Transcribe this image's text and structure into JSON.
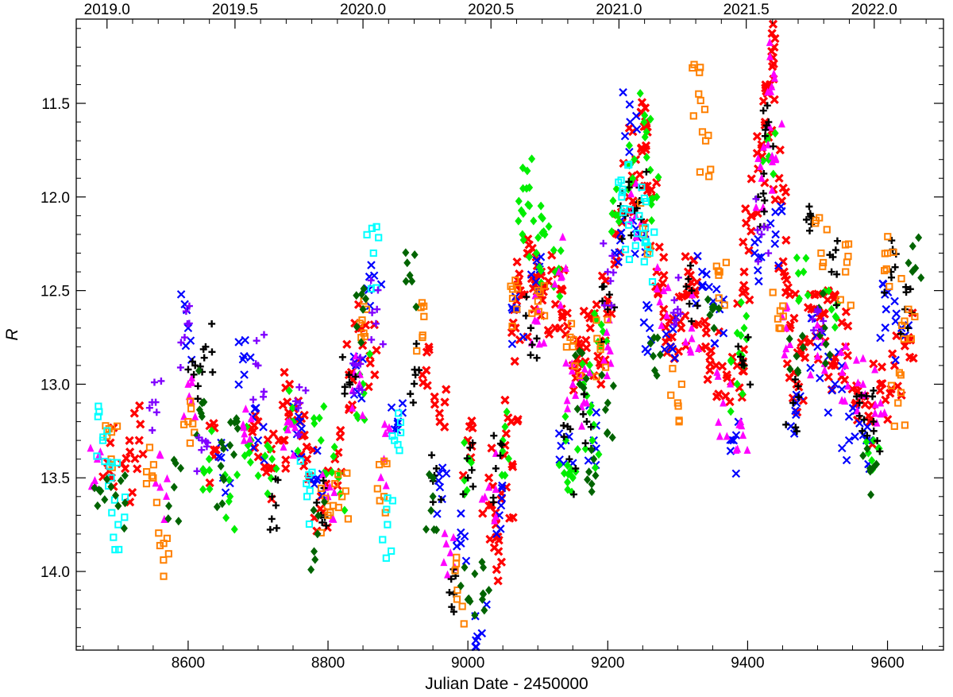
{
  "chart_data": {
    "type": "scatter",
    "title": "",
    "xlabel": "Julian Date - 2450000",
    "ylabel": "R",
    "xlim": [
      8440,
      9680
    ],
    "ylim": [
      14.42,
      11.05
    ],
    "y_inverted": true,
    "grid": false,
    "x_ticks": [
      {
        "value": 8600,
        "label": "8600"
      },
      {
        "value": 8800,
        "label": "8800"
      },
      {
        "value": 9000,
        "label": "9000"
      },
      {
        "value": 9200,
        "label": "9200"
      },
      {
        "value": 9400,
        "label": "9400"
      },
      {
        "value": 9600,
        "label": "9600"
      }
    ],
    "top_ticks": [
      {
        "value": 8484,
        "label": "2019.0"
      },
      {
        "value": 8667,
        "label": "2019.5"
      },
      {
        "value": 8850,
        "label": "2020.0"
      },
      {
        "value": 9033,
        "label": "2020.5"
      },
      {
        "value": 9216,
        "label": "2021.0"
      },
      {
        "value": 9398,
        "label": "2021.5"
      },
      {
        "value": 9581,
        "label": "2022.0"
      }
    ],
    "y_ticks": [
      {
        "value": 11.5,
        "label": "11.5"
      },
      {
        "value": 12.0,
        "label": "12.0"
      },
      {
        "value": 12.5,
        "label": "12.5"
      },
      {
        "value": 13.0,
        "label": "13.0"
      },
      {
        "value": 13.5,
        "label": "13.5"
      },
      {
        "value": 14.0,
        "label": "14.0"
      }
    ],
    "series_colors": [
      "#ff0000",
      "#0000ff",
      "#00ee00",
      "#ff00ff",
      "#000000",
      "#ff8000",
      "#00ffff",
      "#006400",
      "#8000ff"
    ],
    "series": [
      {
        "color": "#ff0000",
        "marker": "x-bold",
        "points": [
          [
            8485,
            13.42
          ],
          [
            8510,
            13.45
          ],
          [
            8530,
            13.3
          ],
          [
            8640,
            13.35
          ],
          [
            8700,
            13.2
          ],
          [
            8715,
            13.45
          ],
          [
            8730,
            13.3
          ],
          [
            8745,
            13.0
          ],
          [
            8760,
            13.2
          ],
          [
            8770,
            13.4
          ],
          [
            8790,
            13.6
          ],
          [
            8810,
            13.4
          ],
          [
            8830,
            12.95
          ],
          [
            8845,
            12.7
          ],
          [
            8860,
            12.85
          ],
          [
            8935,
            12.95
          ],
          [
            8960,
            13.2
          ],
          [
            9000,
            13.3
          ],
          [
            9030,
            13.5
          ],
          [
            9040,
            13.75
          ],
          [
            9048,
            13.95
          ],
          [
            9055,
            13.55
          ],
          [
            9062,
            13.2
          ],
          [
            9068,
            12.7
          ],
          [
            9075,
            12.5
          ],
          [
            9085,
            12.3
          ],
          [
            9095,
            12.6
          ],
          [
            9105,
            12.4
          ],
          [
            9115,
            12.45
          ],
          [
            9125,
            12.7
          ],
          [
            9135,
            12.5
          ],
          [
            9150,
            12.9
          ],
          [
            9160,
            12.8
          ],
          [
            9175,
            12.7
          ],
          [
            9190,
            12.9
          ],
          [
            9200,
            12.55
          ],
          [
            9215,
            12.2
          ],
          [
            9230,
            12.0
          ],
          [
            9240,
            11.8
          ],
          [
            9248,
            11.55
          ],
          [
            9255,
            11.6
          ],
          [
            9262,
            12.0
          ],
          [
            9270,
            12.4
          ],
          [
            9280,
            12.6
          ],
          [
            9290,
            12.8
          ],
          [
            9305,
            12.7
          ],
          [
            9315,
            12.4
          ],
          [
            9325,
            12.5
          ],
          [
            9340,
            12.8
          ],
          [
            9355,
            12.9
          ],
          [
            9370,
            12.95
          ],
          [
            9385,
            12.9
          ],
          [
            9395,
            12.4
          ],
          [
            9405,
            12.1
          ],
          [
            9415,
            11.85
          ],
          [
            9425,
            11.6
          ],
          [
            9432,
            11.4
          ],
          [
            9438,
            11.2
          ],
          [
            9445,
            11.9
          ],
          [
            9452,
            12.4
          ],
          [
            9460,
            12.7
          ],
          [
            9470,
            13.0
          ],
          [
            9480,
            12.8
          ],
          [
            9495,
            12.6
          ],
          [
            9505,
            12.7
          ],
          [
            9515,
            12.5
          ],
          [
            9525,
            12.9
          ],
          [
            9540,
            12.8
          ],
          [
            9555,
            13.1
          ],
          [
            9575,
            13.2
          ],
          [
            9590,
            13.0
          ],
          [
            9610,
            12.9
          ],
          [
            9630,
            12.75
          ]
        ]
      },
      {
        "color": "#0000ff",
        "marker": "x",
        "points": [
          [
            8600,
            12.7
          ],
          [
            8650,
            13.5
          ],
          [
            8680,
            12.85
          ],
          [
            8700,
            13.3
          ],
          [
            8760,
            13.2
          ],
          [
            8785,
            13.5
          ],
          [
            8840,
            12.9
          ],
          [
            8866,
            12.42
          ],
          [
            8900,
            13.2
          ],
          [
            8960,
            13.55
          ],
          [
            8990,
            13.85
          ],
          [
            9020,
            14.33
          ],
          [
            9045,
            13.7
          ],
          [
            9070,
            12.6
          ],
          [
            9100,
            12.5
          ],
          [
            9140,
            13.3
          ],
          [
            9180,
            13.3
          ],
          [
            9210,
            12.3
          ],
          [
            9232,
            11.6
          ],
          [
            9245,
            12.2
          ],
          [
            9260,
            12.7
          ],
          [
            9290,
            12.8
          ],
          [
            9335,
            12.4
          ],
          [
            9360,
            12.6
          ],
          [
            9380,
            13.3
          ],
          [
            9410,
            12.3
          ],
          [
            9440,
            12.2
          ],
          [
            9470,
            13.1
          ],
          [
            9500,
            12.8
          ],
          [
            9525,
            13.0
          ],
          [
            9545,
            13.3
          ],
          [
            9570,
            13.3
          ],
          [
            9598,
            12.6
          ],
          [
            9620,
            12.7
          ]
        ]
      },
      {
        "color": "#00ee00",
        "marker": "diamond",
        "points": [
          [
            8630,
            13.4
          ],
          [
            8660,
            13.6
          ],
          [
            8690,
            13.3
          ],
          [
            8720,
            13.4
          ],
          [
            8750,
            13.2
          ],
          [
            8790,
            13.3
          ],
          [
            8815,
            13.5
          ],
          [
            8850,
            13.0
          ],
          [
            9000,
            13.4
          ],
          [
            9050,
            13.3
          ],
          [
            9078,
            12.2
          ],
          [
            9088,
            11.95
          ],
          [
            9098,
            12.3
          ],
          [
            9110,
            12.2
          ],
          [
            9125,
            12.4
          ],
          [
            9140,
            13.3
          ],
          [
            9150,
            13.5
          ],
          [
            9165,
            13.0
          ],
          [
            9178,
            13.3
          ],
          [
            9190,
            12.8
          ],
          [
            9215,
            12.1
          ],
          [
            9238,
            11.8
          ],
          [
            9252,
            11.6
          ],
          [
            9270,
            12.0
          ],
          [
            9385,
            13.0
          ],
          [
            9395,
            12.7
          ],
          [
            9430,
            11.8
          ],
          [
            9480,
            12.4
          ],
          [
            9520,
            12.6
          ],
          [
            9580,
            13.3
          ]
        ]
      },
      {
        "color": "#ff00ff",
        "marker": "triangle-up",
        "points": [
          [
            8470,
            13.4
          ],
          [
            8560,
            13.55
          ],
          [
            8600,
            13.0
          ],
          [
            8680,
            13.3
          ],
          [
            8745,
            13.2
          ],
          [
            8800,
            13.6
          ],
          [
            8845,
            13.0
          ],
          [
            8880,
            13.4
          ],
          [
            8975,
            13.9
          ],
          [
            9030,
            13.55
          ],
          [
            9100,
            12.6
          ],
          [
            9130,
            12.4
          ],
          [
            9150,
            13.0
          ],
          [
            9170,
            13.1
          ],
          [
            9200,
            12.8
          ],
          [
            9240,
            12.1
          ],
          [
            9280,
            12.5
          ],
          [
            9320,
            12.7
          ],
          [
            9365,
            13.1
          ],
          [
            9390,
            13.2
          ],
          [
            9420,
            11.9
          ],
          [
            9432,
            11.25
          ],
          [
            9440,
            11.8
          ],
          [
            9455,
            12.7
          ],
          [
            9500,
            12.85
          ],
          [
            9540,
            12.9
          ],
          [
            9565,
            13.0
          ],
          [
            9590,
            13.1
          ]
        ]
      },
      {
        "color": "#000000",
        "marker": "plus",
        "points": [
          [
            8610,
            12.9
          ],
          [
            8625,
            12.8
          ],
          [
            8720,
            13.6
          ],
          [
            8790,
            13.7
          ],
          [
            8830,
            12.95
          ],
          [
            8925,
            12.95
          ],
          [
            8955,
            13.45
          ],
          [
            8980,
            14.12
          ],
          [
            9000,
            13.5
          ],
          [
            9040,
            13.45
          ],
          [
            9090,
            12.7
          ],
          [
            9145,
            13.4
          ],
          [
            9170,
            13.2
          ],
          [
            9200,
            12.6
          ],
          [
            9225,
            12.1
          ],
          [
            9245,
            11.95
          ],
          [
            9320,
            12.5
          ],
          [
            9395,
            12.9
          ],
          [
            9415,
            12.0
          ],
          [
            9430,
            11.6
          ],
          [
            9465,
            13.1
          ],
          [
            9490,
            12.1
          ],
          [
            9520,
            12.4
          ],
          [
            9560,
            13.1
          ],
          [
            9580,
            13.2
          ],
          [
            9605,
            12.4
          ],
          [
            9625,
            12.6
          ]
        ]
      },
      {
        "color": "#ff8000",
        "marker": "square-open",
        "points": [
          [
            8490,
            13.4
          ],
          [
            8550,
            13.5
          ],
          [
            8565,
            13.85
          ],
          [
            8600,
            13.2
          ],
          [
            8800,
            13.7
          ],
          [
            8820,
            13.6
          ],
          [
            8855,
            12.6
          ],
          [
            8880,
            13.6
          ],
          [
            8935,
            12.75
          ],
          [
            8985,
            14.1
          ],
          [
            9070,
            12.6
          ],
          [
            9100,
            12.5
          ],
          [
            9150,
            12.8
          ],
          [
            9190,
            12.8
          ],
          [
            9250,
            12.2
          ],
          [
            9300,
            13.1
          ],
          [
            9330,
            11.45
          ],
          [
            9340,
            11.7
          ],
          [
            9360,
            12.4
          ],
          [
            9445,
            12.7
          ],
          [
            9505,
            12.3
          ],
          [
            9540,
            12.4
          ],
          [
            9600,
            12.3
          ],
          [
            9615,
            13.1
          ],
          [
            9630,
            12.6
          ]
        ]
      },
      {
        "color": "#00ffff",
        "marker": "square-open",
        "points": [
          [
            8478,
            13.3
          ],
          [
            8490,
            13.5
          ],
          [
            8500,
            13.75
          ],
          [
            8770,
            13.6
          ],
          [
            8865,
            12.3
          ],
          [
            8885,
            13.75
          ],
          [
            8895,
            13.3
          ],
          [
            9220,
            12.0
          ],
          [
            9230,
            12.15
          ],
          [
            9245,
            12.1
          ],
          [
            9260,
            12.3
          ]
        ]
      },
      {
        "color": "#006400",
        "marker": "diamond",
        "points": [
          [
            8475,
            13.57
          ],
          [
            8500,
            13.65
          ],
          [
            8580,
            13.55
          ],
          [
            8620,
            13.1
          ],
          [
            8650,
            13.5
          ],
          [
            8670,
            13.2
          ],
          [
            8785,
            13.8
          ],
          [
            8850,
            12.6
          ],
          [
            8920,
            12.45
          ],
          [
            8950,
            13.6
          ],
          [
            9000,
            14.15
          ],
          [
            9030,
            14.1
          ],
          [
            9160,
            13.0
          ],
          [
            9180,
            13.4
          ],
          [
            9200,
            13.1
          ],
          [
            9265,
            12.85
          ],
          [
            9350,
            12.6
          ],
          [
            9470,
            12.85
          ],
          [
            9510,
            12.7
          ],
          [
            9575,
            13.45
          ],
          [
            9640,
            12.38
          ]
        ]
      },
      {
        "color": "#8000ff",
        "marker": "plus",
        "points": [
          [
            8555,
            13.15
          ],
          [
            8595,
            12.75
          ],
          [
            8620,
            13.3
          ],
          [
            8700,
            12.9
          ],
          [
            8760,
            13.1
          ],
          [
            8840,
            12.9
          ],
          [
            8870,
            12.6
          ],
          [
            9200,
            12.4
          ],
          [
            9300,
            12.6
          ],
          [
            9420,
            12.2
          ],
          [
            9500,
            12.6
          ]
        ]
      }
    ]
  }
}
